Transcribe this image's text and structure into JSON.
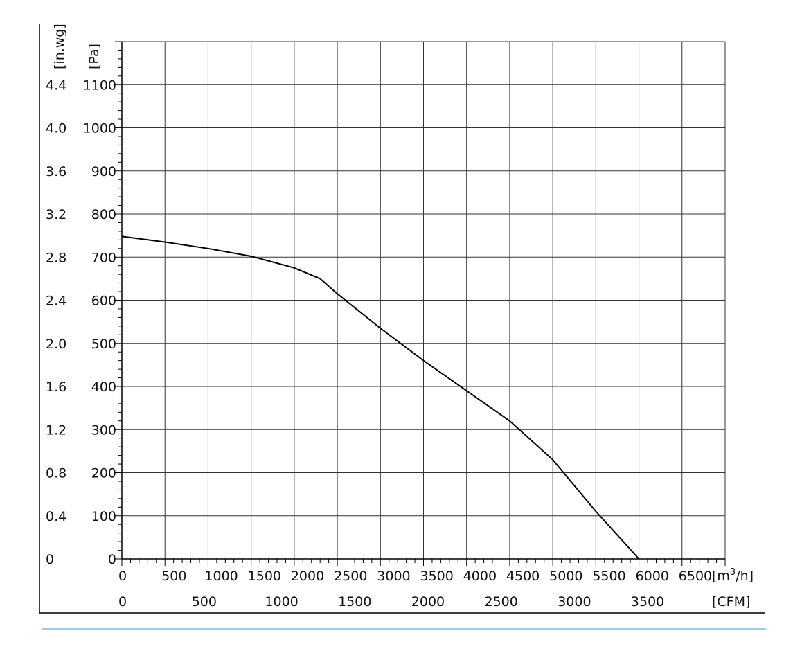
{
  "chart_data": {
    "type": "line",
    "title": "",
    "x_primary": {
      "label": "[m³/h]",
      "label_base": "[m",
      "label_sup": "3",
      "label_tail": "/h]",
      "range": [
        0,
        7000
      ],
      "ticks": [
        "0",
        "500",
        "1000",
        "1500",
        "2000",
        "2500",
        "3000",
        "3500",
        "4000",
        "4500",
        "5000",
        "5500",
        "6000",
        "6500"
      ]
    },
    "x_secondary": {
      "label": "[CFM]",
      "ticks": [
        "0",
        "500",
        "1000",
        "1500",
        "2000",
        "2500",
        "3000",
        "3500"
      ]
    },
    "y_primary": {
      "label": "[Pa]",
      "range": [
        0,
        1100
      ],
      "ticks": [
        "0",
        "100",
        "200",
        "300",
        "400",
        "500",
        "600",
        "700",
        "800",
        "900",
        "1000",
        "1100"
      ]
    },
    "y_secondary": {
      "label": "[in.wg]",
      "ticks": [
        "0",
        "0.4",
        "0.8",
        "1.2",
        "1.6",
        "2.0",
        "2.4",
        "2.8",
        "3.2",
        "3.6",
        "4.0",
        "4.4"
      ]
    },
    "grid": true,
    "series": [
      {
        "x": [
          0,
          500,
          1000,
          1500,
          2000,
          2300,
          2500,
          3000,
          3500,
          4000,
          4500,
          5000,
          5500,
          6000
        ],
        "y": [
          748,
          735,
          720,
          702,
          675,
          650,
          615,
          535,
          460,
          390,
          320,
          230,
          110,
          0
        ]
      }
    ],
    "colors": {
      "line": "#000000",
      "grid": "#333333",
      "rule": "#4a90d9"
    }
  }
}
